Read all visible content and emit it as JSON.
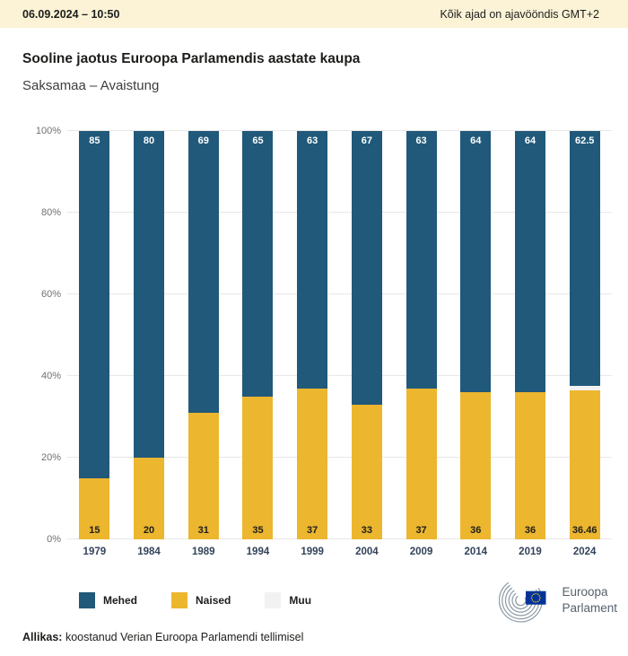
{
  "header": {
    "datetime": "06.09.2024 – 10:50",
    "timezone_note": "Kõik ajad on ajavööndis GMT+2"
  },
  "title": "Sooline jaotus Euroopa Parlamendis aastate kaupa",
  "subtitle": "Saksamaa – Avaistung",
  "chart_data": {
    "type": "bar",
    "stacked": true,
    "categories": [
      "1979",
      "1984",
      "1989",
      "1994",
      "1999",
      "2004",
      "2009",
      "2014",
      "2019",
      "2024"
    ],
    "series": [
      {
        "name": "Mehed",
        "color": "#20597a",
        "values": [
          85,
          80,
          69,
          65,
          63,
          67,
          63,
          64,
          64,
          62.5
        ],
        "labels": [
          "85",
          "80",
          "69",
          "65",
          "63",
          "67",
          "63",
          "64",
          "64",
          "62.5"
        ]
      },
      {
        "name": "Naised",
        "color": "#ecb62f",
        "values": [
          15,
          20,
          31,
          35,
          37,
          33,
          37,
          36,
          36,
          36.46
        ],
        "labels": [
          "15",
          "20",
          "31",
          "35",
          "37",
          "33",
          "37",
          "36",
          "36",
          "36.46"
        ]
      },
      {
        "name": "Muu",
        "color": "#f2f2f2",
        "values": [
          0,
          0,
          0,
          0,
          0,
          0,
          0,
          0,
          0,
          1.04
        ],
        "labels": null
      }
    ],
    "stack_order": [
      1,
      2,
      0
    ],
    "ylim": [
      0,
      100
    ],
    "yticks": [
      "0%",
      "20%",
      "40%",
      "60%",
      "80%",
      "100%"
    ],
    "grid": true,
    "legend_position": "bottom"
  },
  "logo": {
    "line1": "Euroopa",
    "line2": "Parlament",
    "flag_blue": "#003399",
    "star_yellow": "#ffcc00",
    "arc_gray": "#8d9aa5"
  },
  "footer": {
    "source_label": "Allikas:",
    "source_text": "koostanud Verian Euroopa Parlamendi tellimisel"
  }
}
